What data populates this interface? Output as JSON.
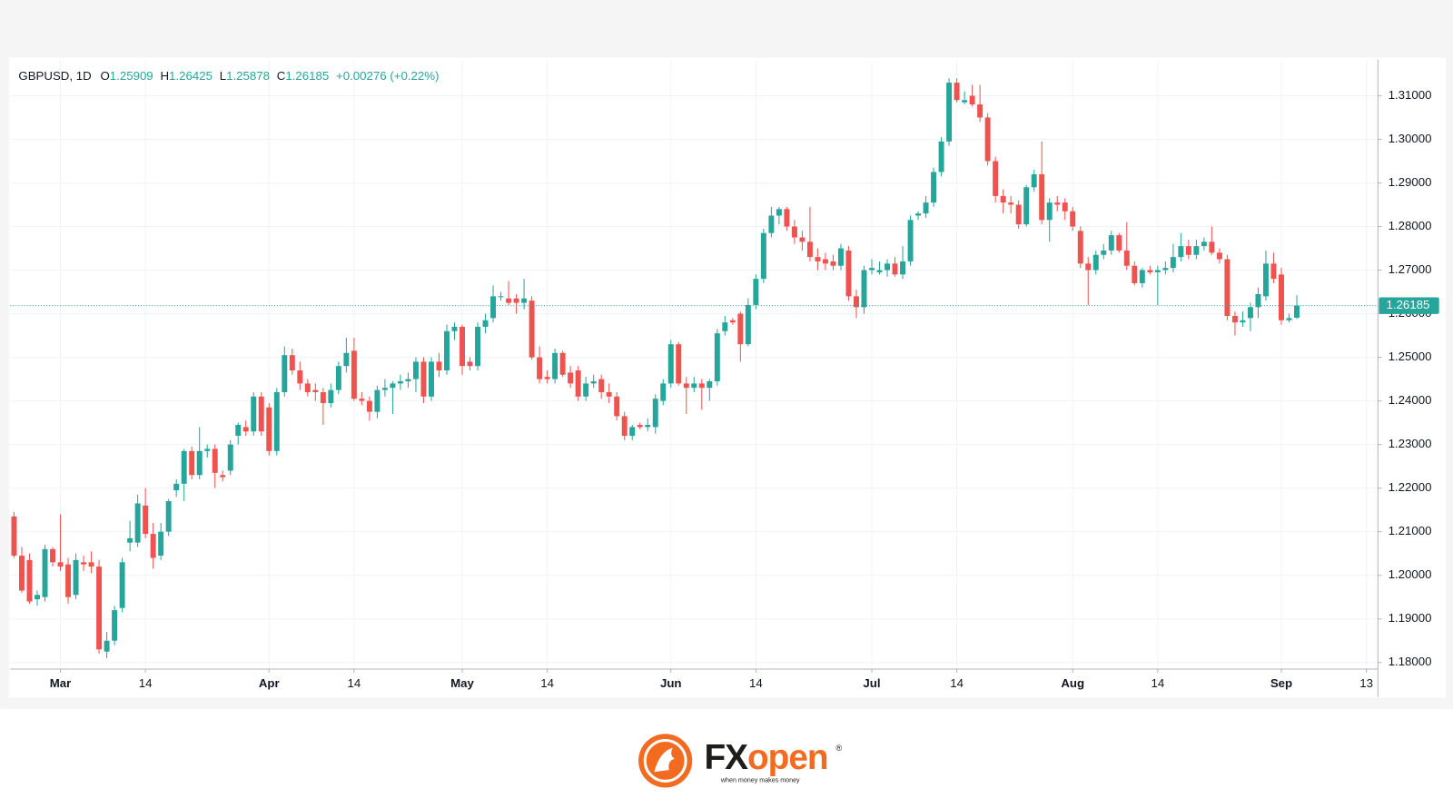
{
  "chart_data": {
    "type": "candlestick",
    "symbol": "GBPUSD, 1D",
    "header_labels": [
      "O",
      "H",
      "L",
      "C"
    ],
    "change": "+0.00276 (+0.22%)",
    "up_color": "#26a69a",
    "down_color": "#ef5350",
    "grid": true,
    "ylim": [
      1.1785,
      1.3181
    ],
    "yticks": [
      {
        "value": 1.18,
        "label": "1.18000"
      },
      {
        "value": 1.19,
        "label": "1.19000"
      },
      {
        "value": 1.2,
        "label": "1.20000"
      },
      {
        "value": 1.21,
        "label": "1.21000"
      },
      {
        "value": 1.22,
        "label": "1.22000"
      },
      {
        "value": 1.23,
        "label": "1.23000"
      },
      {
        "value": 1.24,
        "label": "1.24000"
      },
      {
        "value": 1.25,
        "label": "1.25000"
      },
      {
        "value": 1.26,
        "label": "1.26000"
      },
      {
        "value": 1.27,
        "label": "1.27000"
      },
      {
        "value": 1.28,
        "label": "1.28000"
      },
      {
        "value": 1.29,
        "label": "1.29000"
      },
      {
        "value": 1.3,
        "label": "1.30000"
      },
      {
        "value": 1.31,
        "label": "1.31000"
      }
    ],
    "xlim": [
      -0.5,
      176.5
    ],
    "xticks": [
      {
        "value": 6,
        "label": "Mar"
      },
      {
        "value": 17,
        "label": "14"
      },
      {
        "value": 33,
        "label": "Apr"
      },
      {
        "value": 44,
        "label": "14"
      },
      {
        "value": 58,
        "label": "May"
      },
      {
        "value": 69,
        "label": "14"
      },
      {
        "value": 85,
        "label": "Jun"
      },
      {
        "value": 96,
        "label": "14"
      },
      {
        "value": 111,
        "label": "Jul"
      },
      {
        "value": 122,
        "label": "14"
      },
      {
        "value": 137,
        "label": "Aug"
      },
      {
        "value": 148,
        "label": "14"
      },
      {
        "value": 164,
        "label": "Sep"
      },
      {
        "value": 175,
        "label": "13"
      }
    ],
    "open": [
      1.2135,
      1.2045,
      1.2035,
      1.1945,
      1.195,
      1.206,
      1.203,
      1.2025,
      1.1955,
      1.203,
      1.203,
      1.202,
      1.1825,
      1.185,
      1.1925,
      1.2075,
      1.2075,
      1.216,
      1.2095,
      1.2045,
      1.21,
      1.2195,
      1.221,
      1.2285,
      1.223,
      1.2285,
      1.229,
      1.223,
      1.224,
      1.232,
      1.234,
      1.233,
      1.241,
      1.2385,
      1.2285,
      1.242,
      1.2505,
      1.247,
      1.244,
      1.2425,
      1.242,
      1.2395,
      1.2425,
      1.248,
      1.2515,
      1.2405,
      1.24,
      1.2375,
      1.2425,
      1.243,
      1.244,
      1.2445,
      1.245,
      1.249,
      1.241,
      1.249,
      1.247,
      1.256,
      1.257,
      1.249,
      1.248,
      1.257,
      1.259,
      1.264,
      1.2635,
      1.2635,
      1.2625,
      1.263,
      1.25,
      1.2455,
      1.245,
      1.251,
      1.2465,
      1.247,
      1.241,
      1.244,
      1.245,
      1.242,
      1.241,
      1.2365,
      1.232,
      1.2345,
      1.234,
      1.234,
      1.24,
      1.244,
      1.253,
      1.244,
      1.243,
      1.244,
      1.243,
      1.2445,
      1.256,
      1.2585,
      1.26,
      1.253,
      1.262,
      1.268,
      1.2785,
      1.2825,
      1.284,
      1.28,
      1.2775,
      1.2765,
      1.273,
      1.2725,
      1.272,
      1.271,
      1.2745,
      1.264,
      1.2615,
      1.27,
      1.2695,
      1.27,
      1.2715,
      1.269,
      1.272,
      1.2825,
      1.283,
      1.2855,
      1.2925,
      1.2995,
      1.313,
      1.3085,
      1.31,
      1.308,
      1.305,
      1.295,
      1.287,
      1.2855,
      1.285,
      1.2805,
      1.289,
      1.292,
      1.2815,
      1.2855,
      1.2855,
      1.2835,
      1.279,
      1.2715,
      1.27,
      1.2735,
      1.2745,
      1.278,
      1.2745,
      1.271,
      1.267,
      1.27,
      1.2695,
      1.27,
      1.2705,
      1.273,
      1.2755,
      1.2735,
      1.2755,
      1.2765,
      1.274,
      1.2725,
      1.2595,
      1.258,
      1.259,
      1.2615,
      1.264,
      1.2715,
      1.269,
      1.2585,
      1.25909
    ],
    "high": [
      1.2145,
      1.2065,
      1.205,
      1.1965,
      1.207,
      1.2065,
      1.214,
      1.204,
      1.205,
      1.2045,
      1.2055,
      1.2035,
      1.187,
      1.193,
      1.204,
      1.2125,
      1.2185,
      1.22,
      1.212,
      1.212,
      1.2175,
      1.222,
      1.229,
      1.2295,
      1.234,
      1.23,
      1.23,
      1.224,
      1.231,
      1.235,
      1.2355,
      1.242,
      1.242,
      1.2395,
      1.243,
      1.2525,
      1.252,
      1.249,
      1.245,
      1.244,
      1.243,
      1.244,
      1.249,
      1.2545,
      1.2545,
      1.242,
      1.241,
      1.2435,
      1.245,
      1.2445,
      1.246,
      1.2465,
      1.25,
      1.25,
      1.25,
      1.251,
      1.2575,
      1.258,
      1.2575,
      1.25,
      1.258,
      1.26,
      1.2665,
      1.265,
      1.2675,
      1.2645,
      1.268,
      1.264,
      1.2525,
      1.247,
      1.252,
      1.2515,
      1.248,
      1.248,
      1.2455,
      1.246,
      1.246,
      1.244,
      1.242,
      1.2375,
      1.2345,
      1.235,
      1.236,
      1.2415,
      1.245,
      1.254,
      1.2535,
      1.2455,
      1.2455,
      1.245,
      1.245,
      1.2565,
      1.2595,
      1.259,
      1.2605,
      1.2635,
      1.269,
      1.2795,
      1.2845,
      1.2845,
      1.2845,
      1.2815,
      1.279,
      1.2845,
      1.275,
      1.274,
      1.2735,
      1.276,
      1.2755,
      1.2655,
      1.271,
      1.2725,
      1.272,
      1.2725,
      1.273,
      1.2755,
      1.2825,
      1.2835,
      1.287,
      1.2935,
      1.3005,
      1.314,
      1.314,
      1.311,
      1.3125,
      1.3125,
      1.306,
      1.296,
      1.2885,
      1.287,
      1.286,
      1.2895,
      1.293,
      1.2995,
      1.2865,
      1.287,
      1.2865,
      1.2845,
      1.28,
      1.273,
      1.2745,
      1.276,
      1.279,
      1.2785,
      1.281,
      1.272,
      1.2705,
      1.271,
      1.271,
      1.272,
      1.276,
      1.2785,
      1.277,
      1.277,
      1.2775,
      1.28,
      1.275,
      1.2735,
      1.2605,
      1.2605,
      1.2625,
      1.266,
      1.2745,
      1.274,
      1.2705,
      1.26,
      1.26425
    ],
    "low": [
      1.204,
      1.196,
      1.1935,
      1.193,
      1.194,
      1.202,
      1.201,
      1.1935,
      1.1945,
      1.201,
      1.2005,
      1.182,
      1.181,
      1.184,
      1.1915,
      1.2055,
      1.2065,
      1.2085,
      1.2015,
      1.2035,
      1.209,
      1.218,
      1.217,
      1.222,
      1.222,
      1.227,
      1.22,
      1.2215,
      1.223,
      1.23,
      1.232,
      1.232,
      1.232,
      1.2275,
      1.2275,
      1.241,
      1.246,
      1.2425,
      1.241,
      1.24,
      1.2345,
      1.2385,
      1.2415,
      1.2465,
      1.24,
      1.239,
      1.2355,
      1.236,
      1.241,
      1.237,
      1.2425,
      1.243,
      1.242,
      1.2395,
      1.24,
      1.2455,
      1.246,
      1.254,
      1.246,
      1.247,
      1.247,
      1.2555,
      1.258,
      1.263,
      1.262,
      1.26,
      1.261,
      1.2495,
      1.244,
      1.244,
      1.244,
      1.2455,
      1.243,
      1.24,
      1.24,
      1.243,
      1.2405,
      1.2395,
      1.2355,
      1.231,
      1.231,
      1.2335,
      1.233,
      1.2325,
      1.239,
      1.243,
      1.2435,
      1.237,
      1.242,
      1.238,
      1.24,
      1.2435,
      1.255,
      1.2575,
      1.249,
      1.2525,
      1.261,
      1.267,
      1.2775,
      1.2805,
      1.279,
      1.276,
      1.2745,
      1.272,
      1.27,
      1.27,
      1.27,
      1.27,
      1.263,
      1.259,
      1.26,
      1.269,
      1.269,
      1.2685,
      1.2685,
      1.268,
      1.271,
      1.2815,
      1.282,
      1.2845,
      1.2915,
      1.2985,
      1.3085,
      1.308,
      1.3075,
      1.304,
      1.294,
      1.2855,
      1.283,
      1.283,
      1.2795,
      1.28,
      1.288,
      1.2805,
      1.2765,
      1.2835,
      1.2815,
      1.279,
      1.2705,
      1.262,
      1.269,
      1.2725,
      1.2735,
      1.274,
      1.27,
      1.2665,
      1.266,
      1.269,
      1.262,
      1.269,
      1.2695,
      1.272,
      1.2725,
      1.2725,
      1.2745,
      1.2735,
      1.2715,
      1.2585,
      1.255,
      1.257,
      1.256,
      1.259,
      1.263,
      1.267,
      1.2575,
      1.258,
      1.25878
    ],
    "close": [
      1.2045,
      1.1965,
      1.194,
      1.1955,
      1.206,
      1.203,
      1.202,
      1.195,
      1.2035,
      1.2025,
      1.202,
      1.183,
      1.185,
      1.192,
      1.203,
      1.2085,
      1.2165,
      1.2095,
      1.204,
      1.21,
      1.217,
      1.221,
      1.2285,
      1.223,
      1.2285,
      1.229,
      1.2235,
      1.2225,
      1.23,
      1.2345,
      1.233,
      1.241,
      1.233,
      1.2285,
      1.242,
      1.2505,
      1.247,
      1.244,
      1.242,
      1.242,
      1.2395,
      1.2425,
      1.248,
      1.251,
      1.2405,
      1.24,
      1.2375,
      1.2425,
      1.243,
      1.244,
      1.2445,
      1.245,
      1.249,
      1.241,
      1.249,
      1.247,
      1.256,
      1.257,
      1.248,
      1.248,
      1.257,
      1.2585,
      1.264,
      1.264,
      1.2625,
      1.2625,
      1.2635,
      1.25,
      1.245,
      1.245,
      1.251,
      1.246,
      1.244,
      1.241,
      1.244,
      1.2445,
      1.242,
      1.241,
      1.2365,
      1.232,
      1.234,
      1.234,
      1.2345,
      1.2405,
      1.244,
      1.253,
      1.244,
      1.243,
      1.244,
      1.243,
      1.2445,
      1.2555,
      1.258,
      1.258,
      1.253,
      1.262,
      1.268,
      1.2785,
      1.2825,
      1.284,
      1.28,
      1.2775,
      1.2765,
      1.273,
      1.272,
      1.2715,
      1.271,
      1.275,
      1.264,
      1.2615,
      1.27,
      1.2705,
      1.27,
      1.2715,
      1.269,
      1.272,
      1.2815,
      1.283,
      1.2855,
      1.2925,
      1.2995,
      1.313,
      1.309,
      1.309,
      1.308,
      1.305,
      1.295,
      1.287,
      1.2855,
      1.285,
      1.2805,
      1.289,
      1.292,
      1.2815,
      1.2855,
      1.285,
      1.2835,
      1.28,
      1.2715,
      1.27,
      1.2735,
      1.2745,
      1.278,
      1.2745,
      1.271,
      1.267,
      1.27,
      1.2695,
      1.27,
      1.2705,
      1.273,
      1.2755,
      1.2735,
      1.2755,
      1.2765,
      1.274,
      1.2725,
      1.2595,
      1.258,
      1.2585,
      1.2615,
      1.2645,
      1.2715,
      1.268,
      1.2585,
      1.259,
      1.26185
    ]
  },
  "footer": {
    "brand_fx": "FX",
    "brand_open": "open",
    "registered": "®",
    "tagline": "when money makes money"
  }
}
